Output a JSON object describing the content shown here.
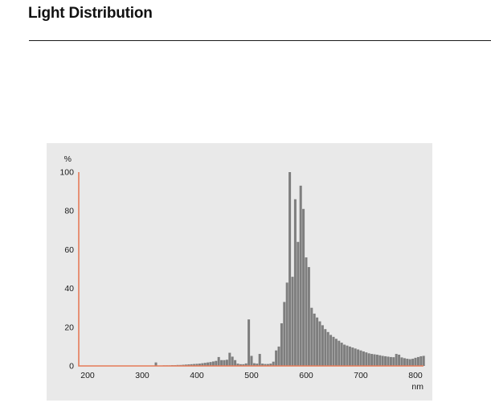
{
  "page": {
    "title": "Light Distribution"
  },
  "chart": {
    "y_axis_unit": "%",
    "x_axis_unit": "nm",
    "y_ticks": [
      0,
      20,
      40,
      60,
      80,
      100
    ],
    "x_ticks": [
      200,
      300,
      400,
      500,
      600,
      700,
      800
    ],
    "colors": {
      "axis": "#E57B59",
      "bar": "#7E7E7E",
      "panel_bg": "#E9E9E9",
      "text": "#1A1A1A"
    }
  },
  "chart_data": {
    "type": "bar",
    "title": "Light Distribution",
    "xlabel": "nm",
    "ylabel": "%",
    "x_range": [
      200,
      820
    ],
    "ylim": [
      0,
      100
    ],
    "grid": false,
    "legend": false,
    "bin_width_nm": 5,
    "description": "Spectral power distribution; relative intensity (%) vs wavelength (nm). Dominant narrow peak at ~570 nm (100%), flanking peaks ~86% and ~93% around 580-595 nm with self-absorption dip near 590 nm, secondary line ~24% at 495 nm, minor lines near 460, 515, 765 nm, decaying continuum to 815 nm.",
    "wavelengths_nm": [
      325,
      330,
      335,
      340,
      345,
      350,
      355,
      360,
      365,
      370,
      375,
      380,
      385,
      390,
      395,
      400,
      405,
      410,
      415,
      420,
      425,
      430,
      435,
      440,
      445,
      450,
      455,
      460,
      465,
      470,
      475,
      480,
      485,
      490,
      495,
      500,
      505,
      510,
      515,
      520,
      525,
      530,
      535,
      540,
      545,
      550,
      555,
      560,
      565,
      570,
      575,
      580,
      585,
      590,
      595,
      600,
      605,
      610,
      615,
      620,
      625,
      630,
      635,
      640,
      645,
      650,
      655,
      660,
      665,
      670,
      675,
      680,
      685,
      690,
      695,
      700,
      705,
      710,
      715,
      720,
      725,
      730,
      735,
      740,
      745,
      750,
      755,
      760,
      765,
      770,
      775,
      780,
      785,
      790,
      795,
      800,
      805,
      810,
      815
    ],
    "values_pct": [
      1.8,
      0.2,
      0.2,
      0.3,
      0.3,
      0.3,
      0.4,
      0.4,
      0.5,
      0.5,
      0.6,
      0.7,
      0.8,
      0.9,
      1.0,
      1.1,
      1.2,
      1.4,
      1.6,
      1.8,
      2.0,
      2.3,
      2.6,
      4.6,
      3.0,
      3.0,
      3.2,
      6.8,
      4.8,
      3.0,
      1.2,
      0.9,
      0.9,
      1.3,
      24,
      5.2,
      1.4,
      1.2,
      6.2,
      1.2,
      1.0,
      1.0,
      1.2,
      2.2,
      8,
      10,
      22,
      33,
      43,
      100,
      46,
      86,
      64,
      93,
      81,
      56,
      51,
      30,
      27,
      25,
      23,
      21,
      19,
      17.5,
      16,
      15,
      14,
      13,
      12,
      11,
      10.5,
      10,
      9.5,
      9,
      8.5,
      8,
      7.5,
      7,
      6.5,
      6.2,
      6,
      5.8,
      5.5,
      5.2,
      5,
      4.8,
      4.6,
      4.5,
      6.2,
      5.8,
      4.4,
      4.0,
      3.7,
      3.5,
      3.7,
      4.2,
      4.6,
      5.0,
      5.2
    ]
  }
}
